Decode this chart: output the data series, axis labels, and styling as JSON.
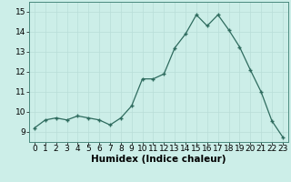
{
  "x": [
    0,
    1,
    2,
    3,
    4,
    5,
    6,
    7,
    8,
    9,
    10,
    11,
    12,
    13,
    14,
    15,
    16,
    17,
    18,
    19,
    20,
    21,
    22,
    23
  ],
  "y": [
    9.2,
    9.6,
    9.7,
    9.6,
    9.8,
    9.7,
    9.6,
    9.35,
    9.7,
    10.3,
    11.65,
    11.65,
    11.9,
    13.2,
    13.9,
    14.85,
    14.3,
    14.85,
    14.1,
    13.25,
    12.1,
    11.0,
    9.55,
    8.75
  ],
  "xlabel": "Humidex (Indice chaleur)",
  "ylim": [
    8.5,
    15.5
  ],
  "xlim": [
    -0.5,
    23.5
  ],
  "yticks": [
    9,
    10,
    11,
    12,
    13,
    14,
    15
  ],
  "xticks": [
    0,
    1,
    2,
    3,
    4,
    5,
    6,
    7,
    8,
    9,
    10,
    11,
    12,
    13,
    14,
    15,
    16,
    17,
    18,
    19,
    20,
    21,
    22,
    23
  ],
  "line_color": "#2e6b5e",
  "marker_color": "#2e6b5e",
  "bg_color": "#cceee8",
  "grid_color": "#b8ddd8",
  "label_fontsize": 7.5,
  "tick_fontsize": 6.5
}
